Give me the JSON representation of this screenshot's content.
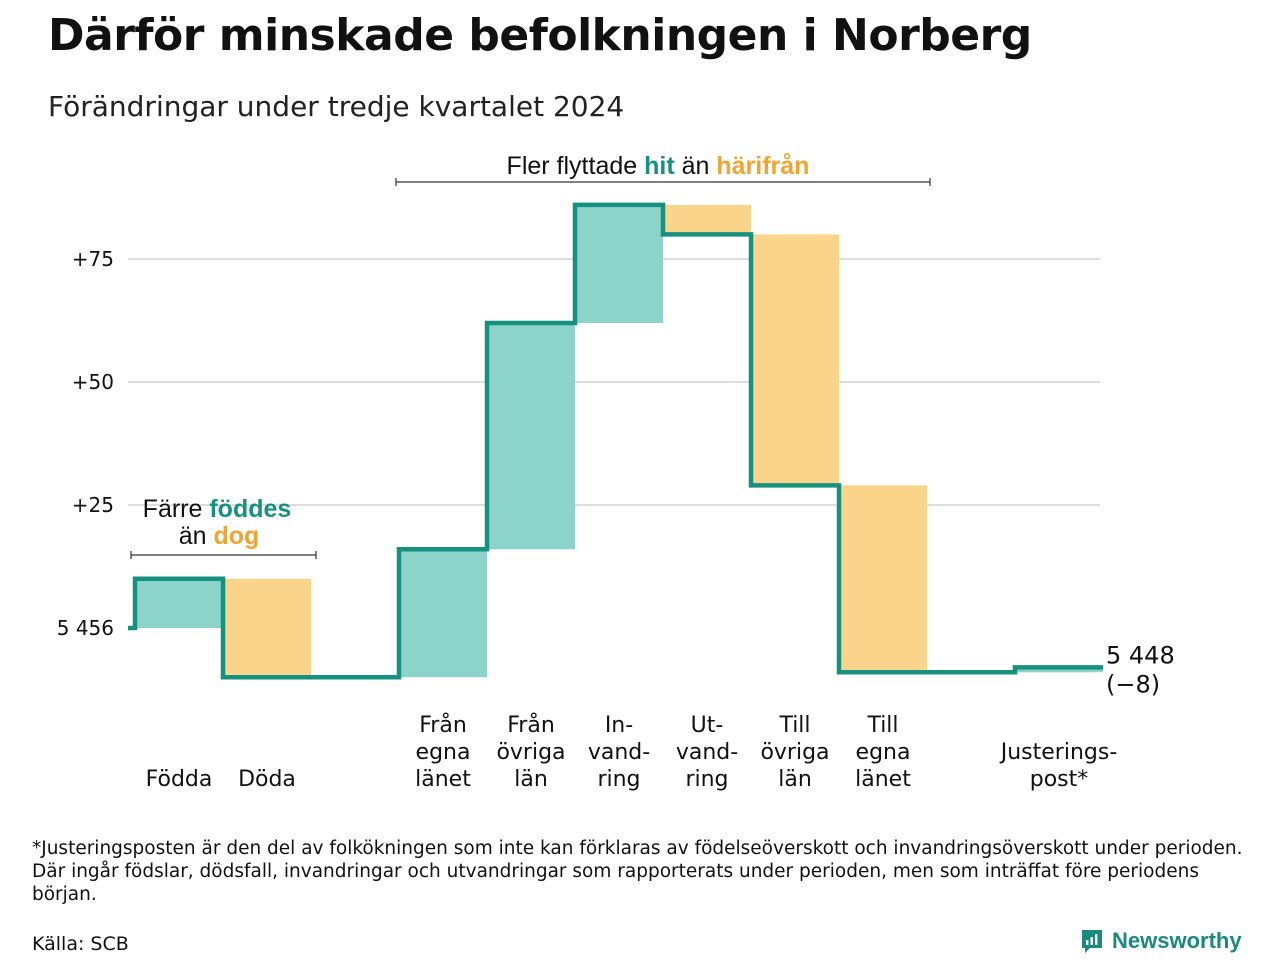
{
  "header": {
    "title": "Därför minskade befolkningen i Norberg",
    "subtitle": "Förändringar under tredje kvartalet 2024"
  },
  "colors": {
    "line": "#17917f",
    "positive_fill": "#8cd3ca",
    "negative_fill": "#fad48a",
    "positive_text": "#17917f",
    "negative_text": "#f0a530",
    "grid": "#dddddd"
  },
  "chart_data": {
    "type": "waterfall",
    "start_value": 5456,
    "start_label": "5 456",
    "end_value": 5448,
    "end_label": "5 448",
    "end_change_label": "(−8)",
    "y_ticks": [
      {
        "value": 75,
        "label": "+75"
      },
      {
        "value": 50,
        "label": "+50"
      },
      {
        "value": 25,
        "label": "+25"
      },
      {
        "value": 0,
        "label": "5 456"
      }
    ],
    "grid": true,
    "steps": [
      {
        "category": [
          "Födda"
        ],
        "change": 10,
        "kind": "in"
      },
      {
        "category": [
          "Döda"
        ],
        "change": -20,
        "kind": "out"
      },
      {
        "category": [],
        "change": 0,
        "kind": "gap"
      },
      {
        "category": [
          "Från",
          "egna",
          "länet"
        ],
        "change": 26,
        "kind": "in"
      },
      {
        "category": [
          "Från",
          "övriga",
          "län"
        ],
        "change": 46,
        "kind": "in"
      },
      {
        "category": [
          "In-",
          "vand-",
          "ring"
        ],
        "change": 24,
        "kind": "in"
      },
      {
        "category": [
          "Ut-",
          "vand-",
          "ring"
        ],
        "change": -6,
        "kind": "out"
      },
      {
        "category": [
          "Till",
          "övriga",
          "län"
        ],
        "change": -51,
        "kind": "out"
      },
      {
        "category": [
          "Till",
          "egna",
          "länet"
        ],
        "change": -38,
        "kind": "out"
      },
      {
        "category": [],
        "change": 0,
        "kind": "gap"
      },
      {
        "category": [
          "Justerings-",
          "post*"
        ],
        "change": 1,
        "kind": "in"
      }
    ],
    "annotations": {
      "births": {
        "line1": "Färre ",
        "highlight1": "föddes",
        "line2": "än ",
        "highlight2": "dog"
      },
      "migration": {
        "prefix": "Fler flyttade ",
        "highlight1": "hit",
        "middle": " än ",
        "highlight2": "härifrån"
      }
    }
  },
  "footer": {
    "footnote": "*Justeringsposten är den del av folkökningen som inte kan förklaras av födelseöverskott och invandringsöverskott under perioden. Där ingår födslar, dödsfall, invandringar och utvandringar som rapporterats under perioden, men som inträffat före periodens början.",
    "source": "Källa: SCB",
    "brand": "Newsworthy"
  }
}
